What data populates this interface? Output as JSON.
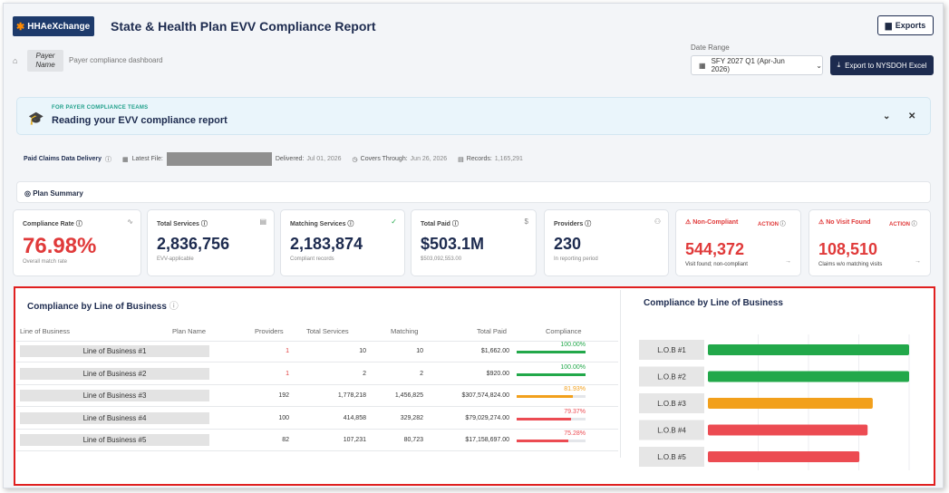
{
  "header": {
    "logo_text": "HHAeXchange",
    "title": "State & Health Plan EVV Compliance Report",
    "exports_label": "Exports",
    "payer_label": "Payer Name",
    "subtitle": "Payer compliance dashboard",
    "date_range_label": "Date Range",
    "date_range_value": "SFY 2027 Q1 (Apr-Jun 2026)",
    "export_button": "Export to NYSDOH Excel"
  },
  "banner": {
    "eyebrow": "FOR PAYER COMPLIANCE TEAMS",
    "title": "Reading your EVV compliance report"
  },
  "delivery": {
    "label": "Paid Claims Data Delivery",
    "latest_file": "Latest File:",
    "delivered_label": "Delivered:",
    "delivered": "Jul 01, 2026",
    "covers_label": "Covers Through:",
    "covers": "Jun 26, 2026",
    "records_label": "Records:",
    "records": "1,165,291"
  },
  "plan_summary": "Plan Summary",
  "cards": [
    {
      "label": "Compliance Rate",
      "value": "76.98%",
      "sub": "Overall match rate"
    },
    {
      "label": "Total Services",
      "value": "2,836,756",
      "sub": "EVV-applicable"
    },
    {
      "label": "Matching Services",
      "value": "2,183,874",
      "sub": "Compliant records"
    },
    {
      "label": "Total Paid",
      "value": "$503.1M",
      "sub": "$503,092,553.00"
    },
    {
      "label": "Providers",
      "value": "230",
      "sub": "In reporting period"
    },
    {
      "label": "Non-Compliant",
      "value": "544,372",
      "sub": "Visit found; non-compliant",
      "action": "ACTION"
    },
    {
      "label": "No Visit Found",
      "value": "108,510",
      "sub": "Claims w/o matching visits",
      "action": "ACTION"
    }
  ],
  "table": {
    "title": "Compliance by Line of Business",
    "headers": [
      "Line of Business",
      "Plan Name",
      "Providers",
      "Total Services",
      "Matching",
      "Total Paid",
      "Compliance"
    ],
    "rows": [
      {
        "lob": "Line of Business #1",
        "providers": "1",
        "total": "10",
        "matching": "10",
        "paid": "$1,662.00",
        "pct": "100.00%",
        "pct_value": 100,
        "color": "#22a84a"
      },
      {
        "lob": "Line of Business #2",
        "providers": "1",
        "total": "2",
        "matching": "2",
        "paid": "$920.00",
        "pct": "100.00%",
        "pct_value": 100,
        "color": "#22a84a"
      },
      {
        "lob": "Line of Business #3",
        "providers": "192",
        "total": "1,778,218",
        "matching": "1,456,825",
        "paid": "$307,574,824.00",
        "pct": "81.93%",
        "pct_value": 81.93,
        "color": "#f2a01c"
      },
      {
        "lob": "Line of Business #4",
        "providers": "100",
        "total": "414,858",
        "matching": "329,282",
        "paid": "$79,029,274.00",
        "pct": "79.37%",
        "pct_value": 79.37,
        "color": "#ec4b52"
      },
      {
        "lob": "Line of Business #5",
        "providers": "82",
        "total": "107,231",
        "matching": "80,723",
        "paid": "$17,158,697.00",
        "pct": "75.28%",
        "pct_value": 75.28,
        "color": "#ec4b52"
      }
    ]
  },
  "chart_data": {
    "type": "bar",
    "title": "Compliance by Line of Business",
    "categories": [
      "L.O.B #1",
      "L.O.B #2",
      "L.O.B #3",
      "L.O.B #4",
      "L.O.B #5"
    ],
    "values": [
      100,
      100,
      81.93,
      79.37,
      75.28
    ],
    "colors": [
      "#22a84a",
      "#22a84a",
      "#f2a01c",
      "#ec4b52",
      "#ec4b52"
    ],
    "xlim": [
      0,
      100
    ],
    "orientation": "horizontal",
    "grid": true
  }
}
